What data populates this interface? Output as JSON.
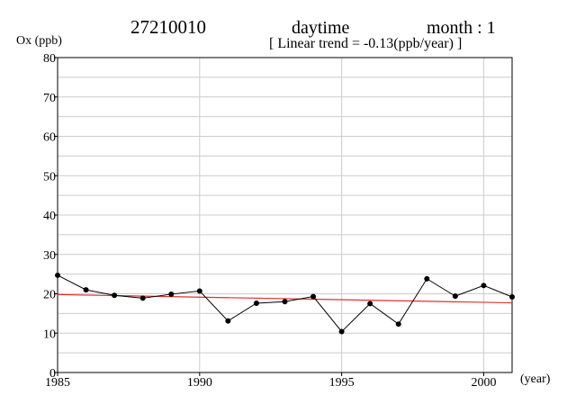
{
  "header": {
    "station": "27210010",
    "period": "daytime",
    "month": "month : 1",
    "trend": "[ Linear trend = -0.13(ppb/year) ]"
  },
  "chart_data": {
    "type": "line",
    "ylabel": "Ox (ppb)",
    "xlabel": "(year)",
    "xlim": [
      1985,
      2001
    ],
    "ylim": [
      0,
      80
    ],
    "x_ticks": [
      1985,
      1990,
      1995,
      2000
    ],
    "y_ticks": [
      0,
      10,
      20,
      30,
      40,
      50,
      60,
      70,
      80
    ],
    "grid": true,
    "series": [
      {
        "color": "#000000",
        "x": [
          1985,
          1986,
          1987,
          1988,
          1989,
          1990,
          1991,
          1992,
          1993,
          1994,
          1995,
          1996,
          1997,
          1998,
          1999,
          2000,
          2001
        ],
        "y": [
          24.7,
          21.0,
          19.6,
          18.9,
          19.9,
          20.7,
          13.1,
          17.6,
          18.0,
          19.3,
          10.4,
          17.5,
          12.3,
          23.8,
          19.4,
          22.1,
          19.2
        ]
      }
    ],
    "trend_line": {
      "color": "#e03030",
      "x": [
        1985,
        2001
      ],
      "y": [
        19.8,
        17.7
      ]
    }
  }
}
